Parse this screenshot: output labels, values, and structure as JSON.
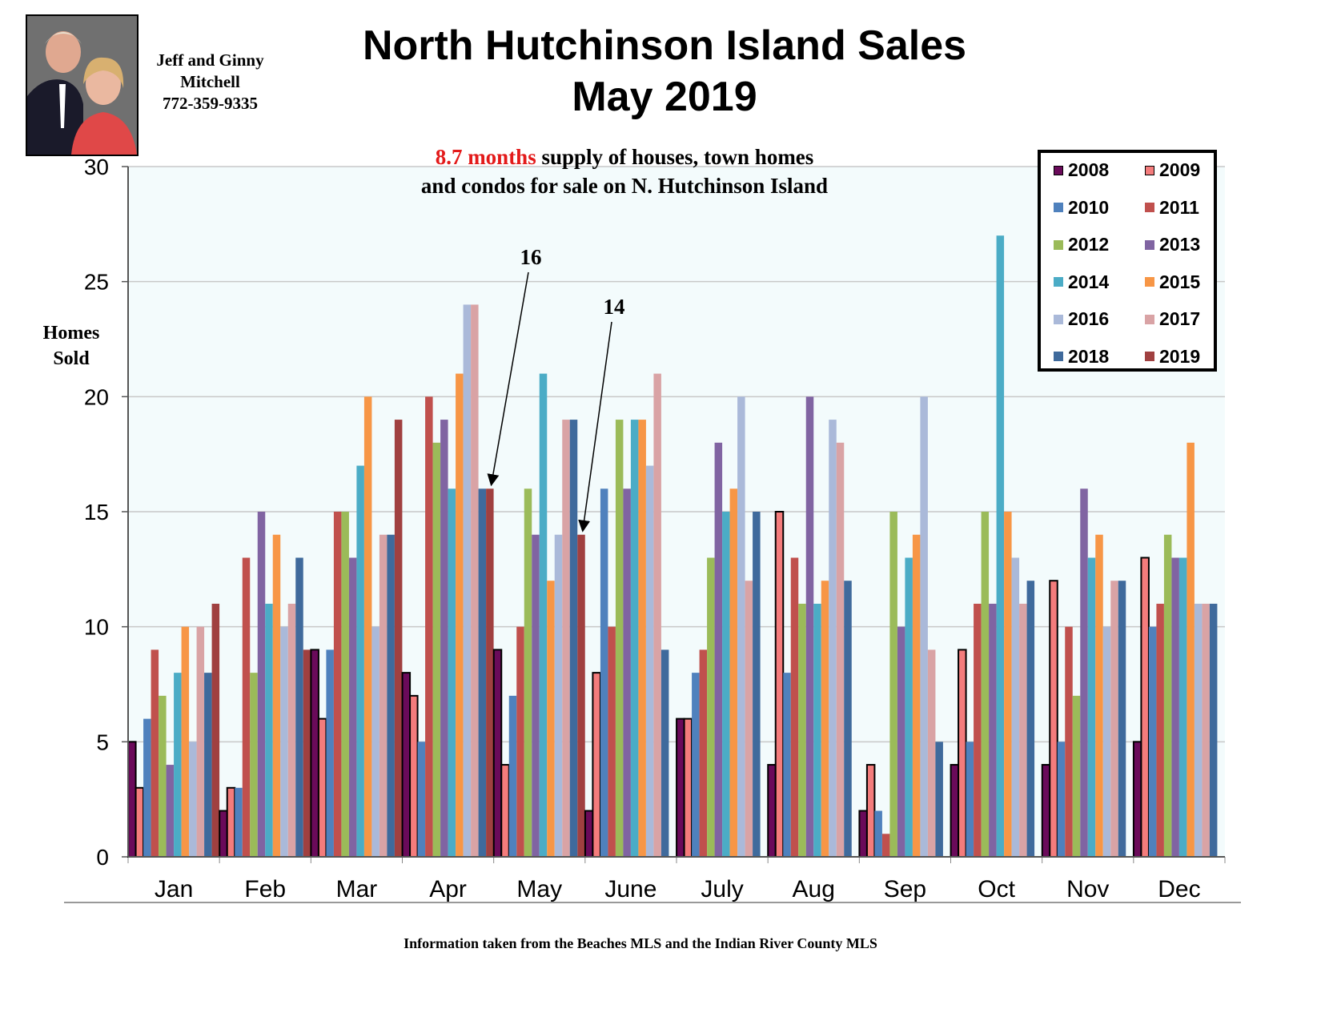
{
  "agent": {
    "line1": "Jeff and Ginny",
    "line2": "Mitchell",
    "phone": "772-359-9335"
  },
  "header": {
    "title_line1": "North Hutchinson Island Sales",
    "title_line2": "May 2019"
  },
  "supply_note": {
    "highlight": "8.7 months",
    "rest_line1": " supply of houses, town homes",
    "line2": "and condos for sale on N. Hutchinson Island",
    "highlight_color": "#e31a1a"
  },
  "footer": "Information taken from the Beaches MLS and the Indian River County MLS",
  "chart_data": {
    "type": "bar",
    "title": "North Hutchinson Island Sales May 2019",
    "xlabel": "",
    "ylabel": "Homes Sold",
    "ylabel_lines": [
      "Homes",
      "Sold"
    ],
    "ylim": [
      0,
      30
    ],
    "yticks": [
      0,
      5,
      10,
      15,
      20,
      25,
      30
    ],
    "grid": true,
    "legend_position": "top-right",
    "categories": [
      "Jan",
      "Feb",
      "Mar",
      "Apr",
      "May",
      "June",
      "July",
      "Aug",
      "Sep",
      "Oct",
      "Nov",
      "Dec"
    ],
    "series": [
      {
        "name": "2008",
        "color": "#6a0a5a",
        "outlined": true,
        "values": [
          5,
          2,
          9,
          8,
          9,
          2,
          6,
          4,
          2,
          4,
          4,
          5
        ]
      },
      {
        "name": "2009",
        "color": "#f47c7c",
        "outlined": true,
        "values": [
          3,
          3,
          6,
          7,
          4,
          8,
          6,
          15,
          4,
          9,
          12,
          13
        ]
      },
      {
        "name": "2010",
        "color": "#4f81bd",
        "values": [
          6,
          3,
          9,
          5,
          7,
          16,
          8,
          8,
          2,
          5,
          5,
          10
        ]
      },
      {
        "name": "2011",
        "color": "#c0504d",
        "values": [
          9,
          13,
          15,
          20,
          10,
          10,
          9,
          13,
          1,
          11,
          10,
          11
        ]
      },
      {
        "name": "2012",
        "color": "#9bbb59",
        "values": [
          7,
          8,
          15,
          18,
          16,
          19,
          13,
          11,
          15,
          15,
          7,
          14
        ]
      },
      {
        "name": "2013",
        "color": "#8064a2",
        "values": [
          4,
          15,
          13,
          19,
          14,
          16,
          18,
          20,
          10,
          11,
          16,
          13
        ]
      },
      {
        "name": "2014",
        "color": "#4bacc6",
        "values": [
          8,
          11,
          17,
          16,
          21,
          19,
          15,
          11,
          13,
          27,
          13,
          13
        ]
      },
      {
        "name": "2015",
        "color": "#f79646",
        "values": [
          10,
          14,
          20,
          21,
          12,
          19,
          16,
          12,
          14,
          15,
          14,
          18
        ]
      },
      {
        "name": "2016",
        "color": "#aab9d9",
        "values": [
          5,
          10,
          10,
          24,
          14,
          17,
          20,
          19,
          20,
          13,
          10,
          11
        ]
      },
      {
        "name": "2017",
        "color": "#d9a3a5",
        "values": [
          10,
          11,
          14,
          24,
          19,
          21,
          12,
          18,
          9,
          11,
          12,
          11
        ]
      },
      {
        "name": "2018",
        "color": "#3f6a9c",
        "values": [
          8,
          13,
          14,
          16,
          19,
          9,
          15,
          12,
          5,
          12,
          12,
          11
        ]
      },
      {
        "name": "2019",
        "color": "#a04040",
        "values": [
          11,
          9,
          19,
          16,
          14,
          null,
          null,
          null,
          null,
          null,
          null,
          null
        ]
      }
    ],
    "annotations": [
      {
        "text": "16",
        "month": "Apr",
        "series": "2019",
        "value": 16
      },
      {
        "text": "14",
        "month": "May",
        "series": "2019",
        "value": 14
      }
    ]
  }
}
